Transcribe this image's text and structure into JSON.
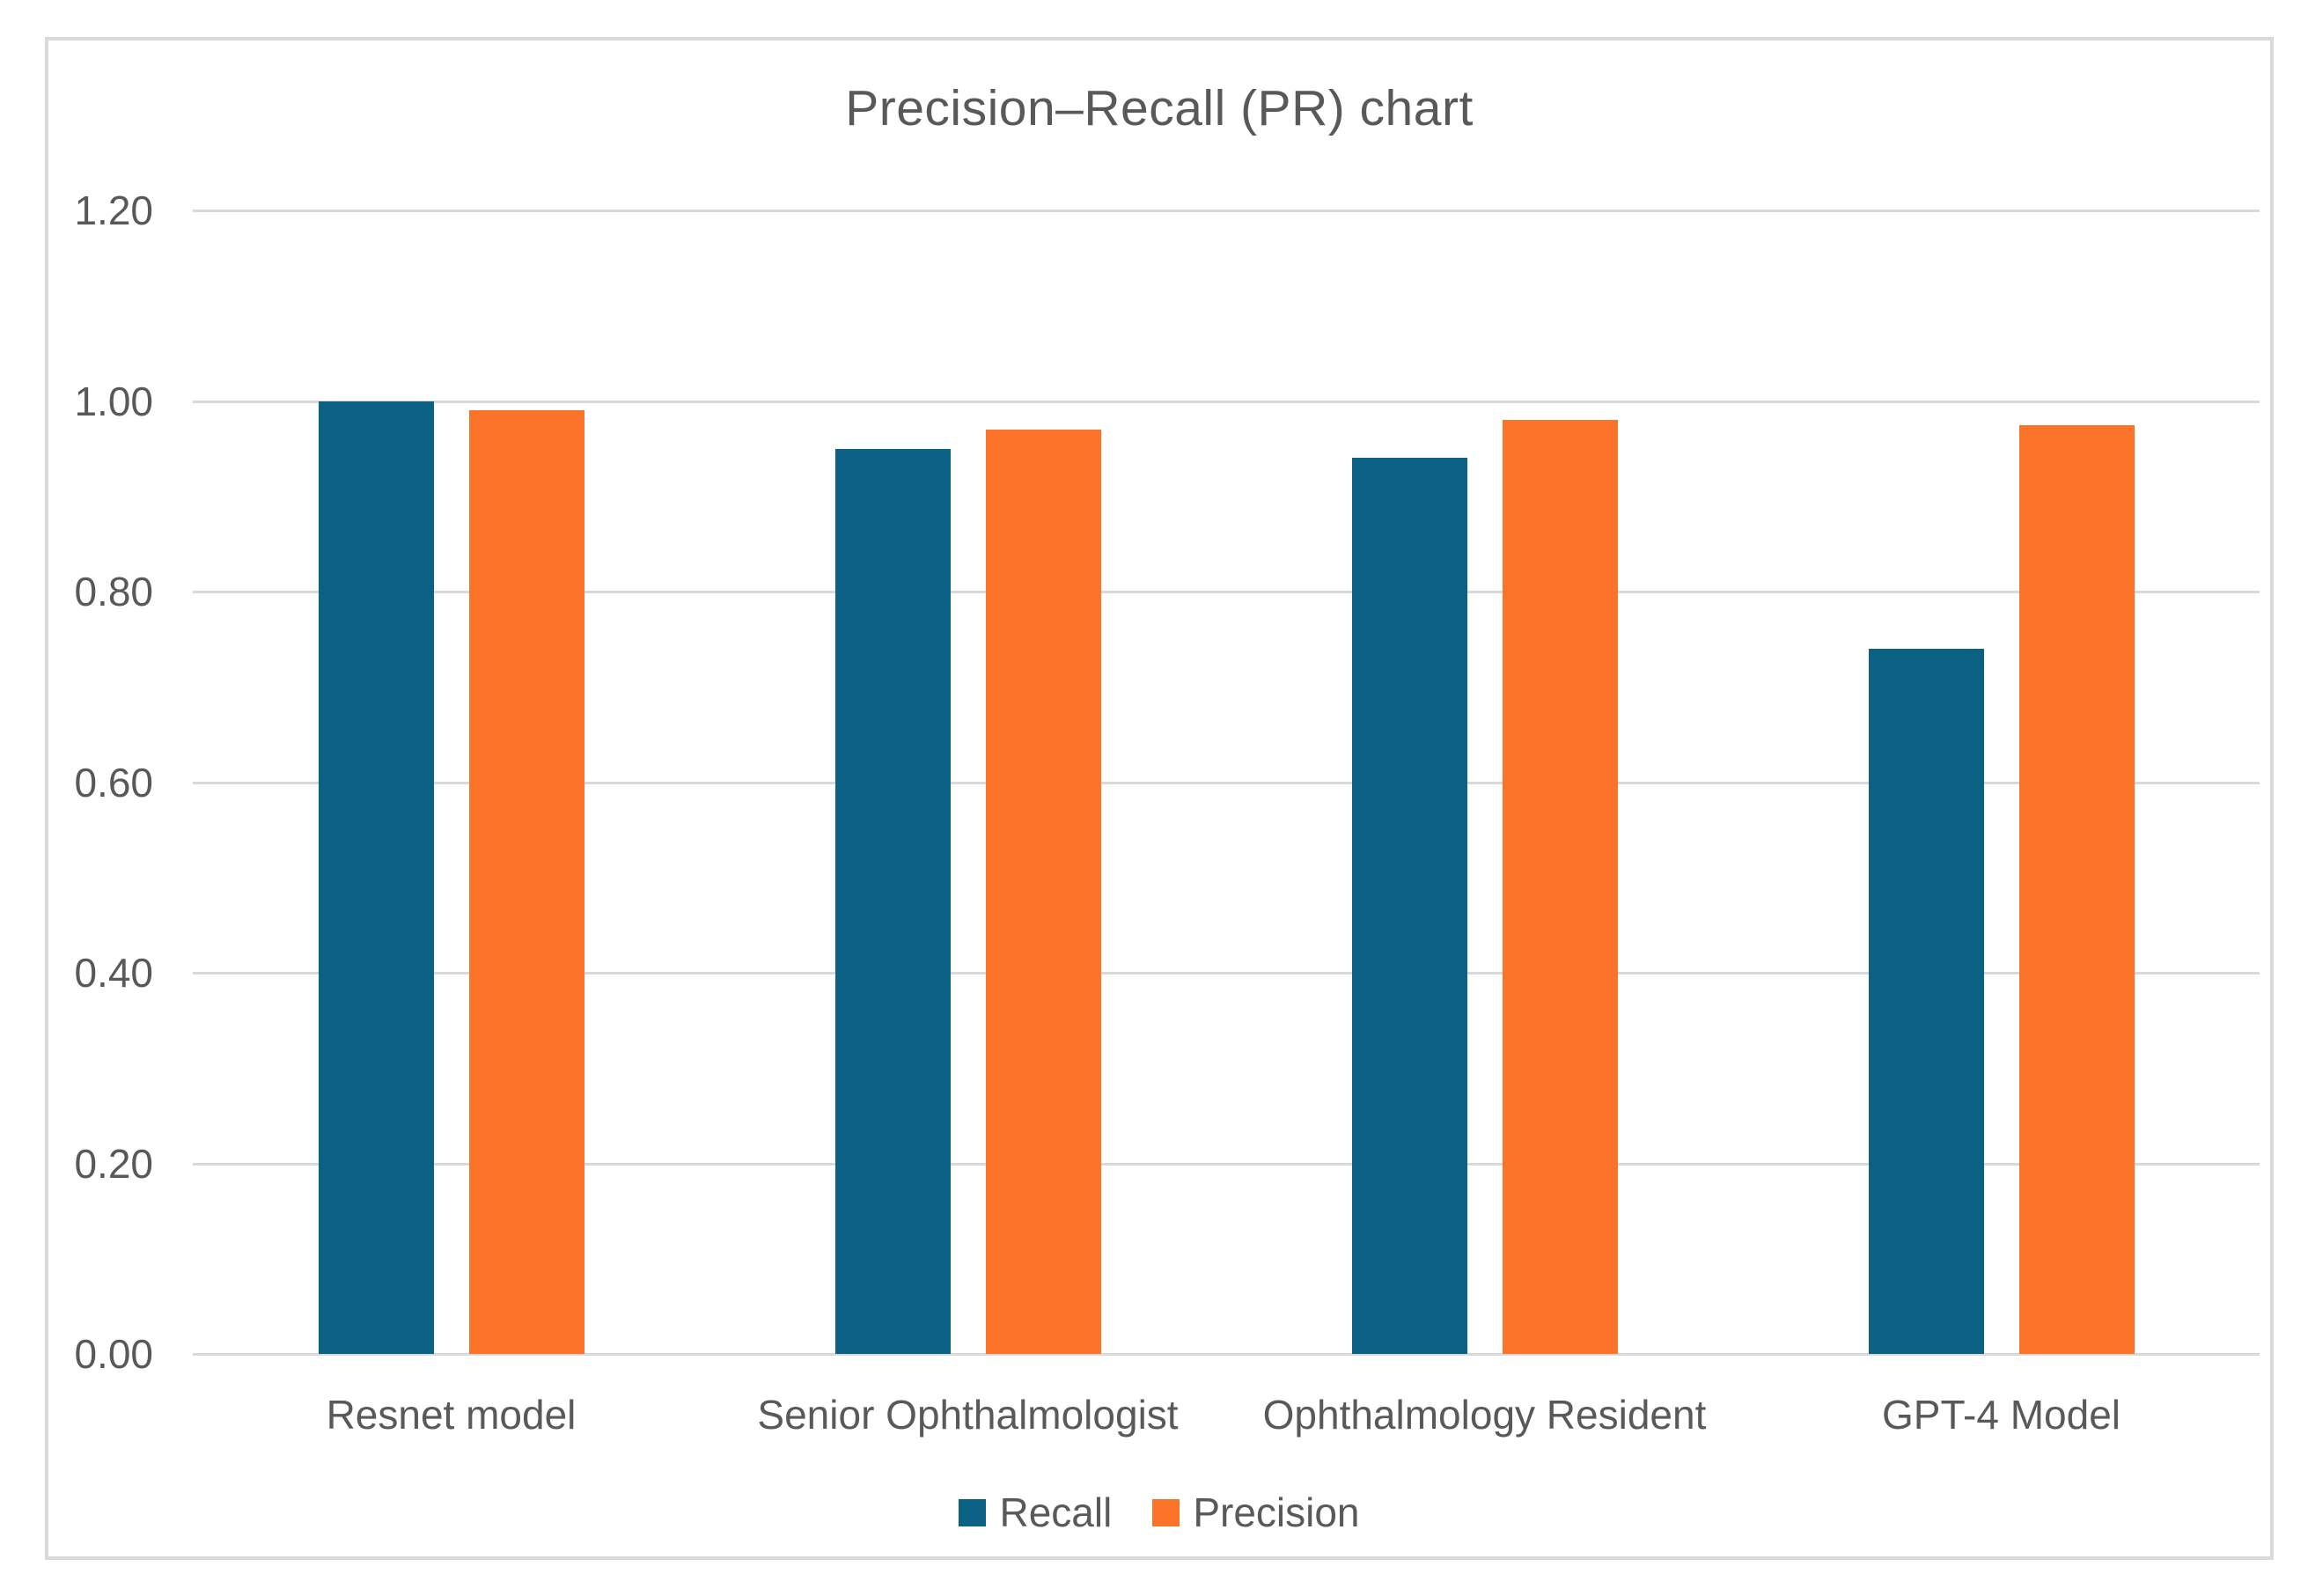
{
  "chart_data": {
    "type": "bar",
    "title": "Precision–Recall (PR) chart",
    "categories": [
      "Resnet model",
      "Senior Ophthalmologist",
      "Ophthalmology Resident",
      "GPT-4 Model"
    ],
    "series": [
      {
        "name": "Recall",
        "color": "#0a6183",
        "values": [
          1.0,
          0.95,
          0.94,
          0.74
        ]
      },
      {
        "name": "Precision",
        "color": "#fa7329",
        "values": [
          0.99,
          0.97,
          0.98,
          0.975
        ]
      }
    ],
    "xlabel": "",
    "ylabel": "",
    "ylim": [
      0,
      1.2
    ],
    "yticks": [
      {
        "value": 0.0,
        "label": "0.00"
      },
      {
        "value": 0.2,
        "label": "0.20"
      },
      {
        "value": 0.4,
        "label": "0.40"
      },
      {
        "value": 0.6,
        "label": "0.60"
      },
      {
        "value": 0.8,
        "label": "0.80"
      },
      {
        "value": 1.0,
        "label": "1.00"
      },
      {
        "value": 1.2,
        "label": "1.20"
      }
    ],
    "grid": true,
    "legend_position": "bottom",
    "colors": {
      "text": "#595959",
      "gridline": "#d9d9d9",
      "border": "#d9d9d9",
      "background": "#ffffff"
    }
  }
}
